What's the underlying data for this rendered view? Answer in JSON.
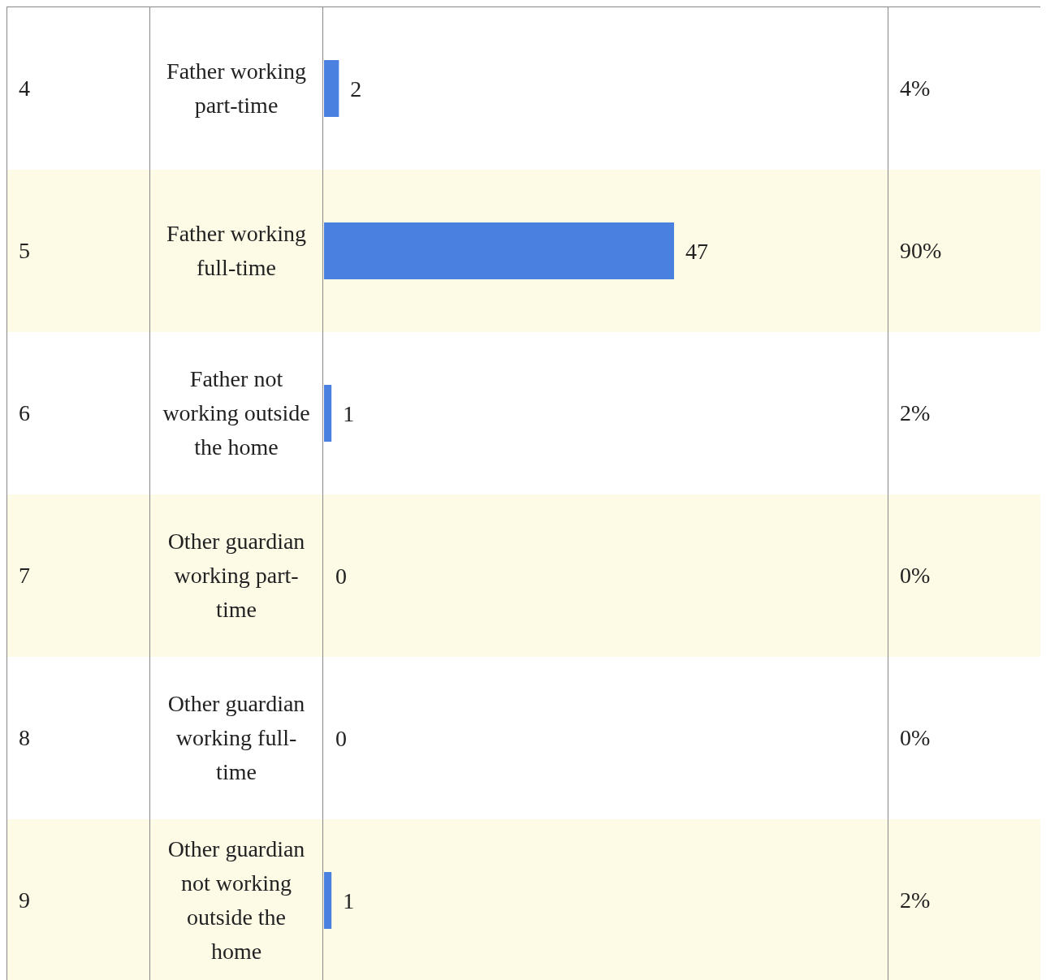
{
  "chart_data": {
    "type": "bar",
    "orientation": "horizontal",
    "categories": [
      "Father working part-time",
      "Father working full-time",
      "Father not working outside the home",
      "Other guardian working part-time",
      "Other guardian working full-time",
      "Other guardian not working outside the home"
    ],
    "values": [
      2,
      47,
      1,
      0,
      0,
      1
    ],
    "color": "#4a80e0",
    "data_labels": true,
    "annotations": [
      "4",
      "5",
      "6",
      "7",
      "8",
      "9",
      "4%",
      "90%",
      "2%",
      "0%",
      "0%",
      "2%"
    ]
  }
}
